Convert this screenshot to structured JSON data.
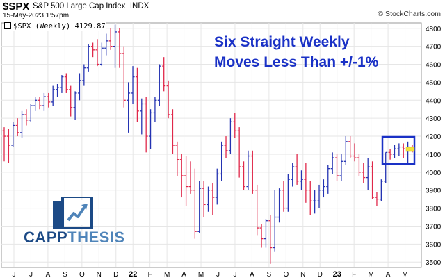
{
  "header": {
    "symbol": "$SPX",
    "name": "S&P 500 Large Cap Index",
    "exchange": "INDX",
    "date": "15-May-2023 1:57pm",
    "copyright": "© StockCharts.com"
  },
  "legend": {
    "text": "$SPX (Weekly) 4129.87"
  },
  "annotation": {
    "line1": "Six Straight Weekly",
    "line2": "Moves Less Than +/-1%"
  },
  "logo": {
    "word1": "CAPP",
    "word2": "THESIS"
  },
  "colors": {
    "up": "#2433b2",
    "down": "#e0284a",
    "highlight_box": "#1a31c6",
    "grid": "#e6e6e6",
    "annotation": "#1a31c6",
    "logo_dark": "#1c4a86",
    "logo_light": "#4f84b9"
  },
  "chart_data": {
    "type": "ohlc",
    "title": "$SPX (Weekly) 4129.87",
    "ylim": [
      3470,
      4830
    ],
    "y_ticks": [
      3500,
      3600,
      3700,
      3800,
      3900,
      4000,
      4100,
      4200,
      4300,
      4400,
      4500,
      4600,
      4700,
      4800
    ],
    "x_tick_labels": [
      "J",
      "J",
      "A",
      "S",
      "O",
      "N",
      "D",
      "22",
      "F",
      "M",
      "A",
      "M",
      "J",
      "J",
      "A",
      "S",
      "O",
      "N",
      "D",
      "23",
      "F",
      "M",
      "A",
      "M"
    ],
    "grid": true,
    "last_value": 4129.87,
    "highlight": "last 6 weeks (Apr–May 2023)",
    "series": [
      {
        "o": 4230,
        "h": 4250,
        "l": 4060,
        "c": 4200
      },
      {
        "o": 4200,
        "h": 4240,
        "l": 4050,
        "c": 4150
      },
      {
        "o": 4150,
        "h": 4280,
        "l": 4140,
        "c": 4260
      },
      {
        "o": 4260,
        "h": 4300,
        "l": 4200,
        "c": 4220
      },
      {
        "o": 4220,
        "h": 4340,
        "l": 4190,
        "c": 4320
      },
      {
        "o": 4320,
        "h": 4350,
        "l": 4260,
        "c": 4290
      },
      {
        "o": 4290,
        "h": 4380,
        "l": 4280,
        "c": 4370
      },
      {
        "o": 4370,
        "h": 4420,
        "l": 4340,
        "c": 4400
      },
      {
        "o": 4400,
        "h": 4420,
        "l": 4350,
        "c": 4370
      },
      {
        "o": 4370,
        "h": 4440,
        "l": 4340,
        "c": 4420
      },
      {
        "o": 4420,
        "h": 4440,
        "l": 4360,
        "c": 4390
      },
      {
        "o": 4390,
        "h": 4480,
        "l": 4370,
        "c": 4460
      },
      {
        "o": 4460,
        "h": 4490,
        "l": 4420,
        "c": 4470
      },
      {
        "o": 4470,
        "h": 4540,
        "l": 4440,
        "c": 4530
      },
      {
        "o": 4530,
        "h": 4550,
        "l": 4440,
        "c": 4460
      },
      {
        "o": 4460,
        "h": 4480,
        "l": 4310,
        "c": 4360
      },
      {
        "o": 4360,
        "h": 4450,
        "l": 4290,
        "c": 4440
      },
      {
        "o": 4440,
        "h": 4550,
        "l": 4400,
        "c": 4510
      },
      {
        "o": 4510,
        "h": 4600,
        "l": 4480,
        "c": 4580
      },
      {
        "o": 4580,
        "h": 4710,
        "l": 4560,
        "c": 4700
      },
      {
        "o": 4700,
        "h": 4720,
        "l": 4640,
        "c": 4680
      },
      {
        "o": 4680,
        "h": 4740,
        "l": 4590,
        "c": 4600
      },
      {
        "o": 4600,
        "h": 4720,
        "l": 4590,
        "c": 4690
      },
      {
        "o": 4690,
        "h": 4770,
        "l": 4650,
        "c": 4730
      },
      {
        "o": 4730,
        "h": 4800,
        "l": 4680,
        "c": 4700
      },
      {
        "o": 4700,
        "h": 4820,
        "l": 4580,
        "c": 4780
      },
      {
        "o": 4780,
        "h": 4800,
        "l": 4580,
        "c": 4660
      },
      {
        "o": 4660,
        "h": 4700,
        "l": 4360,
        "c": 4400
      },
      {
        "o": 4400,
        "h": 4500,
        "l": 4220,
        "c": 4440
      },
      {
        "o": 4440,
        "h": 4590,
        "l": 4380,
        "c": 4530
      },
      {
        "o": 4530,
        "h": 4580,
        "l": 4280,
        "c": 4340
      },
      {
        "o": 4340,
        "h": 4410,
        "l": 4210,
        "c": 4380
      },
      {
        "o": 4380,
        "h": 4420,
        "l": 4110,
        "c": 4200
      },
      {
        "o": 4200,
        "h": 4350,
        "l": 4130,
        "c": 4330
      },
      {
        "o": 4330,
        "h": 4420,
        "l": 4280,
        "c": 4400
      },
      {
        "o": 4400,
        "h": 4600,
        "l": 4370,
        "c": 4590
      },
      {
        "o": 4590,
        "h": 4640,
        "l": 4450,
        "c": 4480
      },
      {
        "o": 4480,
        "h": 4510,
        "l": 4300,
        "c": 4320
      },
      {
        "o": 4320,
        "h": 4350,
        "l": 4100,
        "c": 4150
      },
      {
        "o": 4150,
        "h": 4170,
        "l": 3980,
        "c": 4070
      },
      {
        "o": 4070,
        "h": 4100,
        "l": 3860,
        "c": 3980
      },
      {
        "o": 3980,
        "h": 4090,
        "l": 3810,
        "c": 3920
      },
      {
        "o": 3920,
        "h": 4060,
        "l": 3880,
        "c": 3900
      },
      {
        "o": 3900,
        "h": 4020,
        "l": 3630,
        "c": 3670
      },
      {
        "o": 3670,
        "h": 3950,
        "l": 3660,
        "c": 3910
      },
      {
        "o": 3910,
        "h": 3950,
        "l": 3750,
        "c": 3820
      },
      {
        "o": 3820,
        "h": 3920,
        "l": 3780,
        "c": 3900
      },
      {
        "o": 3900,
        "h": 3940,
        "l": 3760,
        "c": 3860
      },
      {
        "o": 3860,
        "h": 4020,
        "l": 3820,
        "c": 3990
      },
      {
        "o": 3990,
        "h": 4170,
        "l": 3950,
        "c": 4150
      },
      {
        "o": 4150,
        "h": 4200,
        "l": 4080,
        "c": 4120
      },
      {
        "o": 4120,
        "h": 4300,
        "l": 4100,
        "c": 4280
      },
      {
        "o": 4280,
        "h": 4330,
        "l": 4190,
        "c": 4230
      },
      {
        "o": 4230,
        "h": 4250,
        "l": 3970,
        "c": 4030
      },
      {
        "o": 4030,
        "h": 4060,
        "l": 3900,
        "c": 3920
      },
      {
        "o": 3920,
        "h": 4120,
        "l": 3900,
        "c": 4090
      },
      {
        "o": 4090,
        "h": 4120,
        "l": 3880,
        "c": 3900
      },
      {
        "o": 3900,
        "h": 3930,
        "l": 3650,
        "c": 3690
      },
      {
        "o": 3690,
        "h": 3710,
        "l": 3580,
        "c": 3630
      },
      {
        "o": 3630,
        "h": 3740,
        "l": 3580,
        "c": 3730
      },
      {
        "o": 3730,
        "h": 3760,
        "l": 3490,
        "c": 3580
      },
      {
        "o": 3580,
        "h": 3900,
        "l": 3560,
        "c": 3750
      },
      {
        "o": 3750,
        "h": 3910,
        "l": 3720,
        "c": 3900
      },
      {
        "o": 3900,
        "h": 3950,
        "l": 3780,
        "c": 3800
      },
      {
        "o": 3800,
        "h": 3990,
        "l": 3780,
        "c": 3960
      },
      {
        "o": 3960,
        "h": 4050,
        "l": 3920,
        "c": 4030
      },
      {
        "o": 4030,
        "h": 4100,
        "l": 3930,
        "c": 3950
      },
      {
        "o": 3950,
        "h": 4010,
        "l": 3900,
        "c": 3960
      },
      {
        "o": 3960,
        "h": 4050,
        "l": 3830,
        "c": 3900
      },
      {
        "o": 3900,
        "h": 3950,
        "l": 3760,
        "c": 3840
      },
      {
        "o": 3840,
        "h": 3900,
        "l": 3770,
        "c": 3840
      },
      {
        "o": 3840,
        "h": 3930,
        "l": 3800,
        "c": 3900
      },
      {
        "o": 3900,
        "h": 3960,
        "l": 3860,
        "c": 3920
      },
      {
        "o": 3920,
        "h": 4040,
        "l": 3880,
        "c": 4020
      },
      {
        "o": 4020,
        "h": 4110,
        "l": 3990,
        "c": 4080
      },
      {
        "o": 4080,
        "h": 4100,
        "l": 3950,
        "c": 3980
      },
      {
        "o": 3980,
        "h": 4100,
        "l": 3950,
        "c": 4060
      },
      {
        "o": 4060,
        "h": 4200,
        "l": 4040,
        "c": 4170
      },
      {
        "o": 4170,
        "h": 4200,
        "l": 4080,
        "c": 4090
      },
      {
        "o": 4090,
        "h": 4160,
        "l": 4060,
        "c": 4080
      },
      {
        "o": 4080,
        "h": 4100,
        "l": 3980,
        "c": 4000
      },
      {
        "o": 4000,
        "h": 4050,
        "l": 3940,
        "c": 3970
      },
      {
        "o": 3970,
        "h": 4080,
        "l": 3900,
        "c": 4030
      },
      {
        "o": 4030,
        "h": 4060,
        "l": 3850,
        "c": 3860
      },
      {
        "o": 3860,
        "h": 3890,
        "l": 3810,
        "c": 3850
      },
      {
        "o": 3850,
        "h": 3960,
        "l": 3840,
        "c": 3950
      },
      {
        "o": 3950,
        "h": 4110,
        "l": 3940,
        "c": 4110
      },
      {
        "o": 4110,
        "h": 4130,
        "l": 4070,
        "c": 4100
      },
      {
        "o": 4100,
        "h": 4150,
        "l": 4080,
        "c": 4130
      },
      {
        "o": 4130,
        "h": 4160,
        "l": 4090,
        "c": 4140
      },
      {
        "o": 4140,
        "h": 4160,
        "l": 4080,
        "c": 4130
      },
      {
        "o": 4130,
        "h": 4170,
        "l": 4050,
        "c": 4140
      },
      {
        "o": 4140,
        "h": 4150,
        "l": 4110,
        "c": 4130
      }
    ]
  }
}
